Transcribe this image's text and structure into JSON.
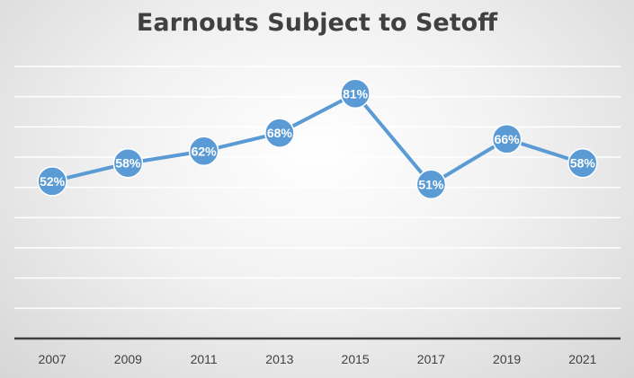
{
  "chart_data": {
    "type": "line",
    "title": "Earnouts Subject to Setoff",
    "categories": [
      "2007",
      "2009",
      "2011",
      "2013",
      "2015",
      "2017",
      "2019",
      "2021"
    ],
    "values": [
      52,
      58,
      62,
      68,
      81,
      51,
      66,
      58
    ],
    "data_labels": [
      "52%",
      "58%",
      "62%",
      "68%",
      "81%",
      "51%",
      "66%",
      "58%"
    ],
    "ylim": [
      0,
      90
    ],
    "y_axis_labels_shown": false,
    "grid": true,
    "legend": "none",
    "colors": {
      "line": "#5b9bd5",
      "marker": "#5b9bd5",
      "marker_border": "#ffffff",
      "data_label": "#ffffff",
      "gridline": "#ffffff",
      "axis": "#404040",
      "title": "#404040"
    }
  }
}
